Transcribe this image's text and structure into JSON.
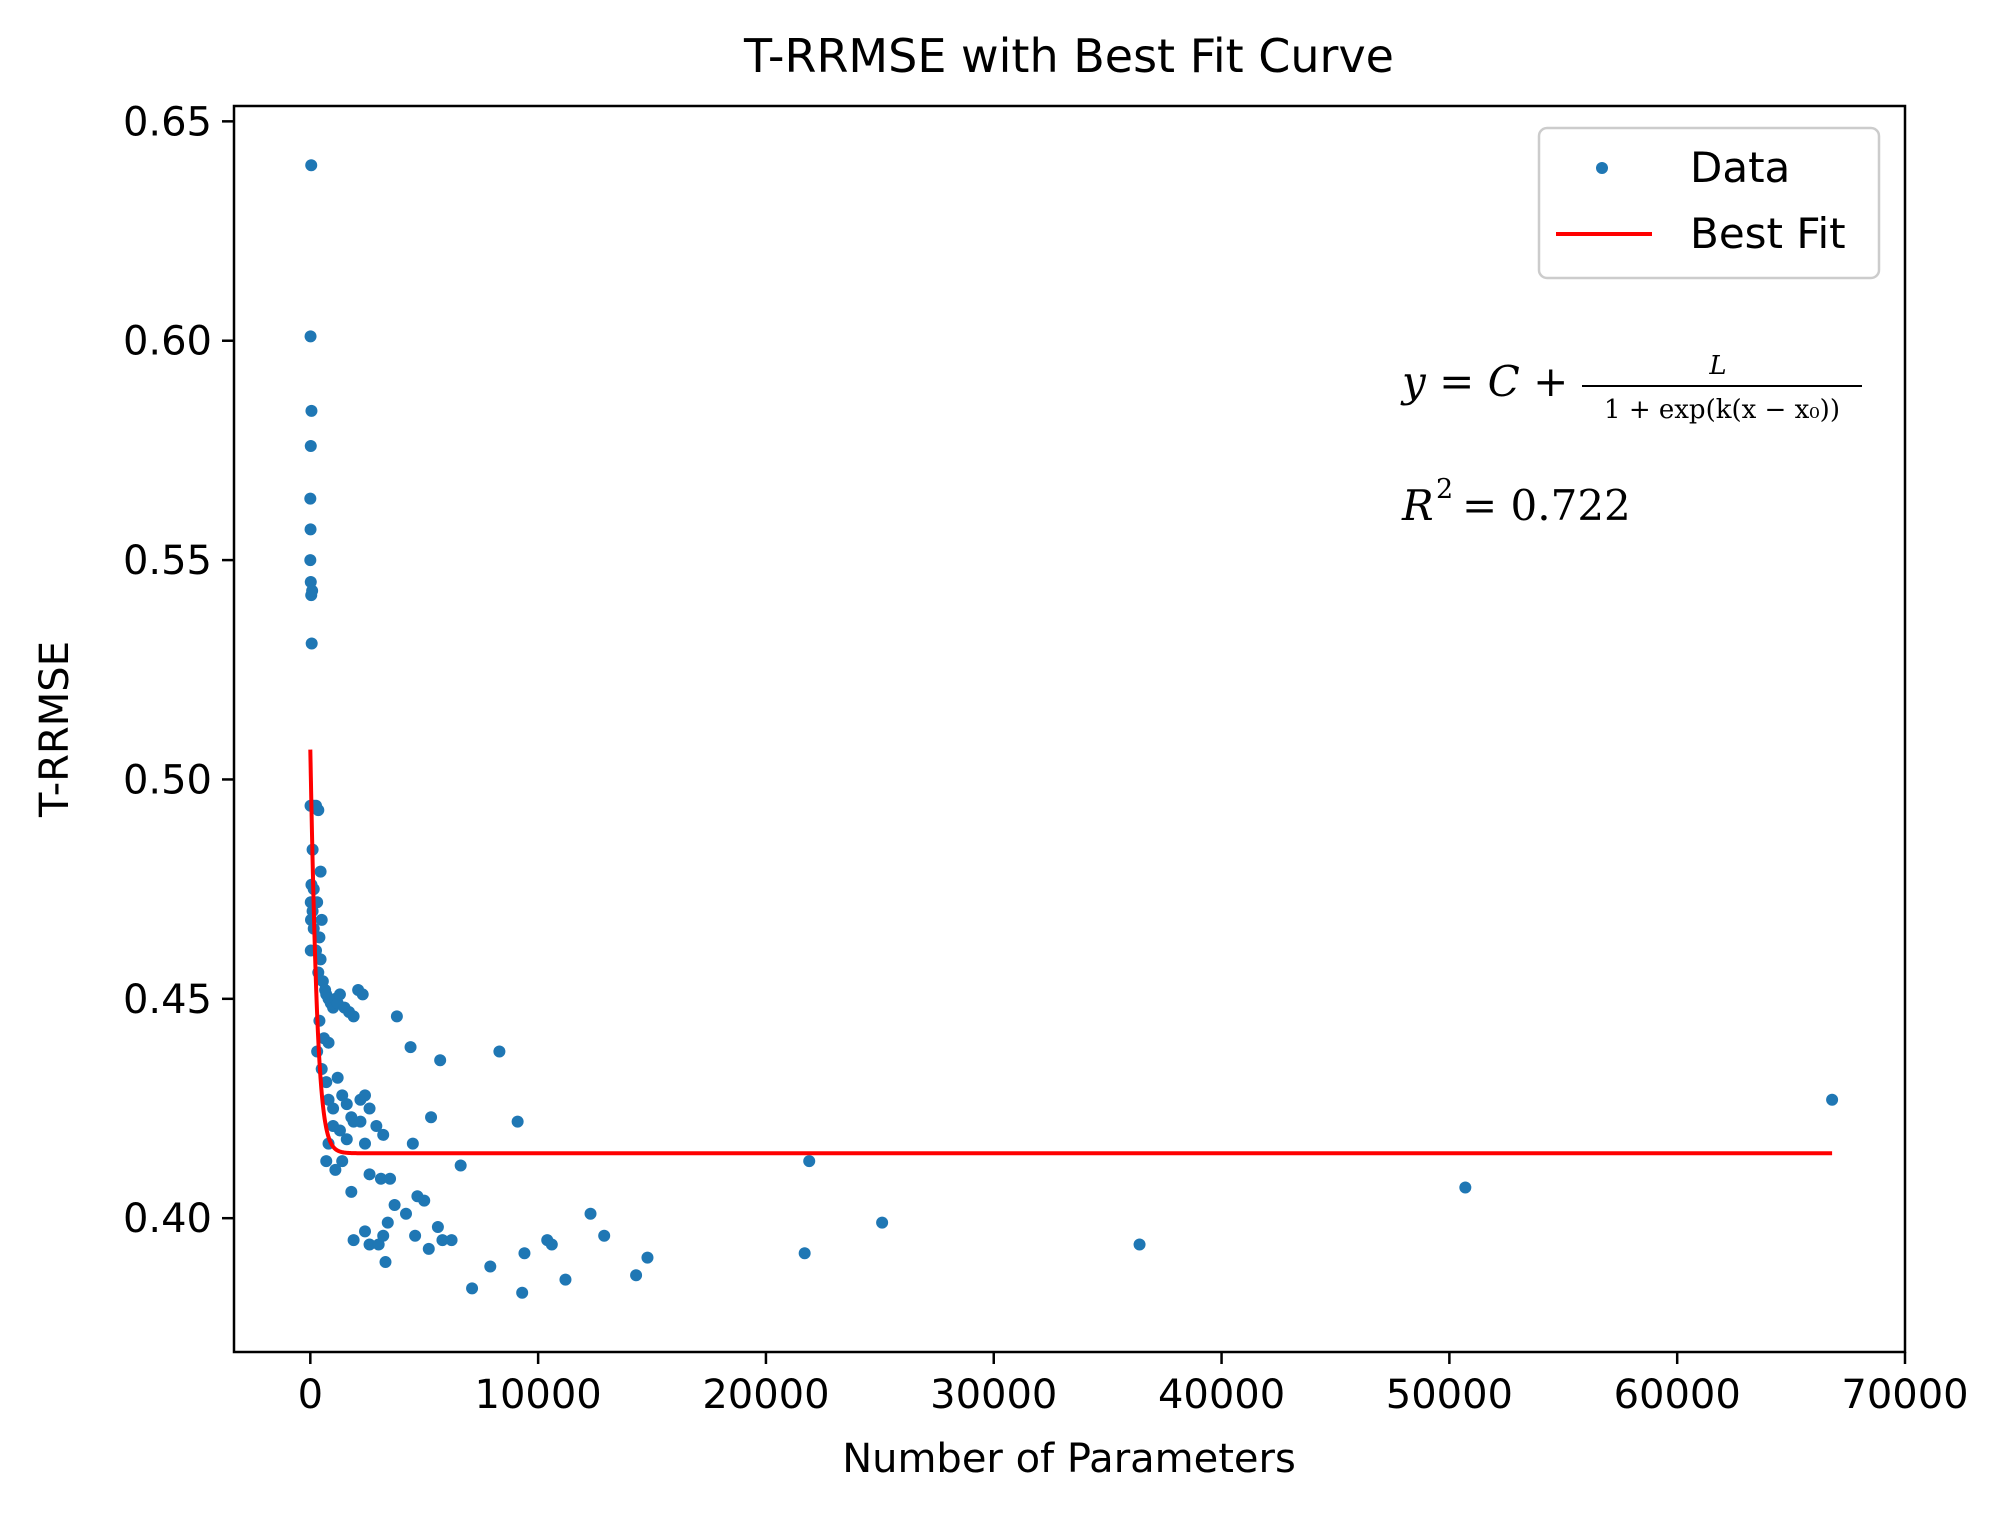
{
  "chart_data": {
    "type": "scatter",
    "title": "T-RRMSE with Best Fit Curve",
    "xlabel": "Number of Parameters",
    "ylabel": "T-RRMSE",
    "xlim": [
      -3350,
      70000
    ],
    "ylim": [
      0.3695,
      0.6535
    ],
    "x_ticks": [
      0,
      10000,
      20000,
      30000,
      40000,
      50000,
      60000,
      70000
    ],
    "x_tick_labels": [
      "0",
      "10000",
      "20000",
      "30000",
      "40000",
      "50000",
      "60000",
      "70000"
    ],
    "y_ticks": [
      0.4,
      0.45,
      0.5,
      0.55,
      0.6,
      0.65
    ],
    "y_tick_labels": [
      "0.40",
      "0.45",
      "0.50",
      "0.55",
      "0.60",
      "0.65"
    ],
    "grid": false,
    "legend": {
      "placement": "top-right",
      "entries": [
        {
          "label": "Data",
          "marker": "dot",
          "color": "#1f77b4"
        },
        {
          "label": "Best Fit",
          "marker": "line",
          "color": "#ff0000"
        }
      ]
    },
    "series": [
      {
        "name": "Data",
        "kind": "scatter",
        "color": "#1f77b4",
        "points": [
          [
            40,
            0.64
          ],
          [
            10,
            0.601
          ],
          [
            50,
            0.584
          ],
          [
            20,
            0.576
          ],
          [
            0,
            0.564
          ],
          [
            10,
            0.557
          ],
          [
            0,
            0.55
          ],
          [
            20,
            0.545
          ],
          [
            40,
            0.542
          ],
          [
            80,
            0.543
          ],
          [
            60,
            0.531
          ],
          [
            10,
            0.494
          ],
          [
            150,
            0.494
          ],
          [
            250,
            0.494
          ],
          [
            350,
            0.493
          ],
          [
            100,
            0.484
          ],
          [
            450,
            0.479
          ],
          [
            50,
            0.476
          ],
          [
            150,
            0.475
          ],
          [
            20,
            0.472
          ],
          [
            100,
            0.47
          ],
          [
            300,
            0.472
          ],
          [
            500,
            0.468
          ],
          [
            30,
            0.468
          ],
          [
            150,
            0.466
          ],
          [
            400,
            0.464
          ],
          [
            20,
            0.461
          ],
          [
            250,
            0.461
          ],
          [
            450,
            0.459
          ],
          [
            350,
            0.456
          ],
          [
            550,
            0.454
          ],
          [
            650,
            0.452
          ],
          [
            700,
            0.451
          ],
          [
            800,
            0.45
          ],
          [
            900,
            0.449
          ],
          [
            1000,
            0.448
          ],
          [
            1100,
            0.45
          ],
          [
            1200,
            0.449
          ],
          [
            1300,
            0.451
          ],
          [
            1500,
            0.448
          ],
          [
            1700,
            0.447
          ],
          [
            1900,
            0.446
          ],
          [
            2100,
            0.452
          ],
          [
            2300,
            0.451
          ],
          [
            400,
            0.445
          ],
          [
            600,
            0.441
          ],
          [
            800,
            0.44
          ],
          [
            300,
            0.438
          ],
          [
            500,
            0.434
          ],
          [
            700,
            0.431
          ],
          [
            800,
            0.427
          ],
          [
            1000,
            0.425
          ],
          [
            1200,
            0.432
          ],
          [
            1400,
            0.428
          ],
          [
            1600,
            0.426
          ],
          [
            1800,
            0.423
          ],
          [
            2200,
            0.427
          ],
          [
            2400,
            0.428
          ],
          [
            2600,
            0.425
          ],
          [
            2900,
            0.421
          ],
          [
            3200,
            0.419
          ],
          [
            1000,
            0.421
          ],
          [
            1300,
            0.42
          ],
          [
            1600,
            0.418
          ],
          [
            1900,
            0.422
          ],
          [
            2200,
            0.422
          ],
          [
            800,
            0.417
          ],
          [
            700,
            0.413
          ],
          [
            1100,
            0.411
          ],
          [
            1400,
            0.413
          ],
          [
            1800,
            0.406
          ],
          [
            2400,
            0.417
          ],
          [
            2600,
            0.41
          ],
          [
            3100,
            0.409
          ],
          [
            3500,
            0.409
          ],
          [
            3700,
            0.403
          ],
          [
            4200,
            0.401
          ],
          [
            4700,
            0.405
          ],
          [
            5000,
            0.404
          ],
          [
            1900,
            0.395
          ],
          [
            2400,
            0.397
          ],
          [
            2600,
            0.394
          ],
          [
            3000,
            0.394
          ],
          [
            3200,
            0.396
          ],
          [
            3300,
            0.39
          ],
          [
            3400,
            0.399
          ],
          [
            4600,
            0.396
          ],
          [
            5200,
            0.393
          ],
          [
            5600,
            0.398
          ],
          [
            5800,
            0.395
          ],
          [
            6200,
            0.395
          ],
          [
            6600,
            0.412
          ],
          [
            5300,
            0.423
          ],
          [
            4500,
            0.417
          ],
          [
            3800,
            0.446
          ],
          [
            4400,
            0.439
          ],
          [
            5700,
            0.436
          ],
          [
            8300,
            0.438
          ],
          [
            9100,
            0.422
          ],
          [
            7100,
            0.384
          ],
          [
            7900,
            0.389
          ],
          [
            9300,
            0.383
          ],
          [
            9400,
            0.392
          ],
          [
            10400,
            0.395
          ],
          [
            10600,
            0.394
          ],
          [
            11200,
            0.386
          ],
          [
            12300,
            0.401
          ],
          [
            12900,
            0.396
          ],
          [
            14300,
            0.387
          ],
          [
            14800,
            0.391
          ],
          [
            21700,
            0.392
          ],
          [
            21900,
            0.413
          ],
          [
            25100,
            0.399
          ],
          [
            36400,
            0.394
          ],
          [
            50700,
            0.407
          ],
          [
            66800,
            0.427
          ]
        ]
      },
      {
        "name": "Best Fit",
        "kind": "line",
        "color": "#ff0000",
        "model": "y = C + L / (1 + exp(k (x - x0)))",
        "params": {
          "C": 0.4148,
          "L": 0.2732,
          "k": 0.00452,
          "x0": -150
        },
        "x_range": [
          0,
          66800
        ]
      }
    ],
    "annotations": {
      "equation": {
        "lhs": "y = C +",
        "numerator": "L",
        "denominator": "1 + exp(k(x − x₀))"
      },
      "r_squared": {
        "symbol": "R",
        "exponent": "2",
        "value": "= 0.722"
      }
    }
  }
}
